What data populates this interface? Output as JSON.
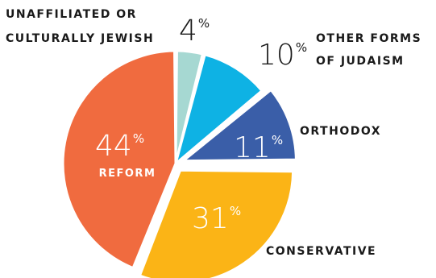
{
  "chart_data": {
    "type": "pie",
    "slices": [
      {
        "label": "Unaffiliated or culturally Jewish",
        "label_lines": [
          "UNAFFILIATED OR",
          "CULTURALLY JEWISH"
        ],
        "value": 4,
        "color": "#a6d8d2"
      },
      {
        "label": "Other forms of Judaism",
        "label_lines": [
          "OTHER FORMS",
          "OF JUDAISM"
        ],
        "value": 10,
        "color": "#0eb2e4"
      },
      {
        "label": "Orthodox",
        "label_lines": [
          "ORTHODOX"
        ],
        "value": 11,
        "color": "#3a5ea8"
      },
      {
        "label": "Conservative",
        "label_lines": [
          "CONSERVATIVE"
        ],
        "value": 31,
        "color": "#fbb416"
      },
      {
        "label": "Reform",
        "label_lines": [
          "REFORM"
        ],
        "value": 44,
        "color": "#f06b3f"
      }
    ],
    "value_suffix": "%"
  }
}
